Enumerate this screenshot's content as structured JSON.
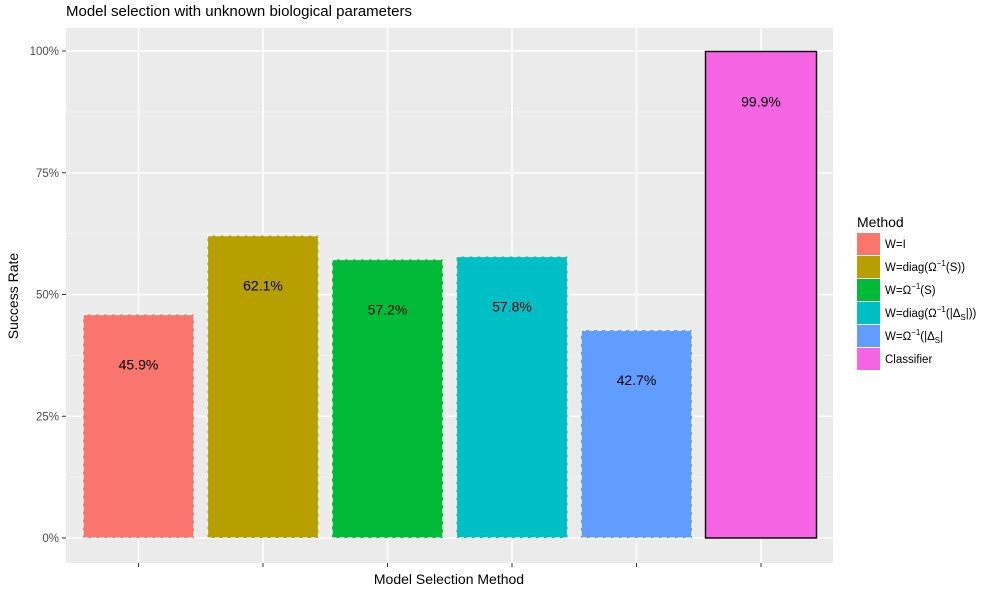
{
  "chart_data": {
    "type": "bar",
    "title": "Model selection with unknown biological parameters",
    "xlabel": "Model Selection Method",
    "ylabel": "Success Rate",
    "ylim": [
      0,
      100
    ],
    "yticks": [
      "0%",
      "25%",
      "50%",
      "75%",
      "100%"
    ],
    "ytick_values": [
      0,
      25,
      50,
      75,
      100
    ],
    "grid": true,
    "legend_title": "Method",
    "legend_position": "right",
    "categories": [
      "W=I",
      "W=diag(Ω⁻¹(S))",
      "W=Ω⁻¹(S)",
      "W=diag(Ω⁻¹(|Δ_S|))",
      "W=Ω⁻¹(|Δ_S|",
      "Classifier"
    ],
    "legend_labels": [
      {
        "base": "W=I",
        "sup": "",
        "rest": ""
      },
      {
        "base": "W=diag(Ω",
        "sup": "−1",
        "rest": "(S))"
      },
      {
        "base": "W=Ω",
        "sup": "−1",
        "rest": "(S)"
      },
      {
        "base": "W=diag(Ω",
        "sup": "−1",
        "rest": "(|Δ",
        "sub": "S",
        "tail": "|))"
      },
      {
        "base": "W=Ω",
        "sup": "−1",
        "rest": "(|Δ",
        "sub": "S",
        "tail": "|"
      },
      {
        "base": "Classifier",
        "sup": "",
        "rest": ""
      }
    ],
    "values": [
      45.9,
      62.1,
      57.2,
      57.8,
      42.7,
      99.9
    ],
    "value_labels": [
      "45.9%",
      "62.1%",
      "57.2%",
      "57.8%",
      "42.7%",
      "99.9%"
    ],
    "colors": [
      "#F8766D",
      "#B79F00",
      "#00BA38",
      "#00BFC4",
      "#619CFF",
      "#F564E3"
    ],
    "outline": [
      "dashed",
      "dashed",
      "dashed",
      "dashed",
      "dashed",
      "solid"
    ]
  }
}
